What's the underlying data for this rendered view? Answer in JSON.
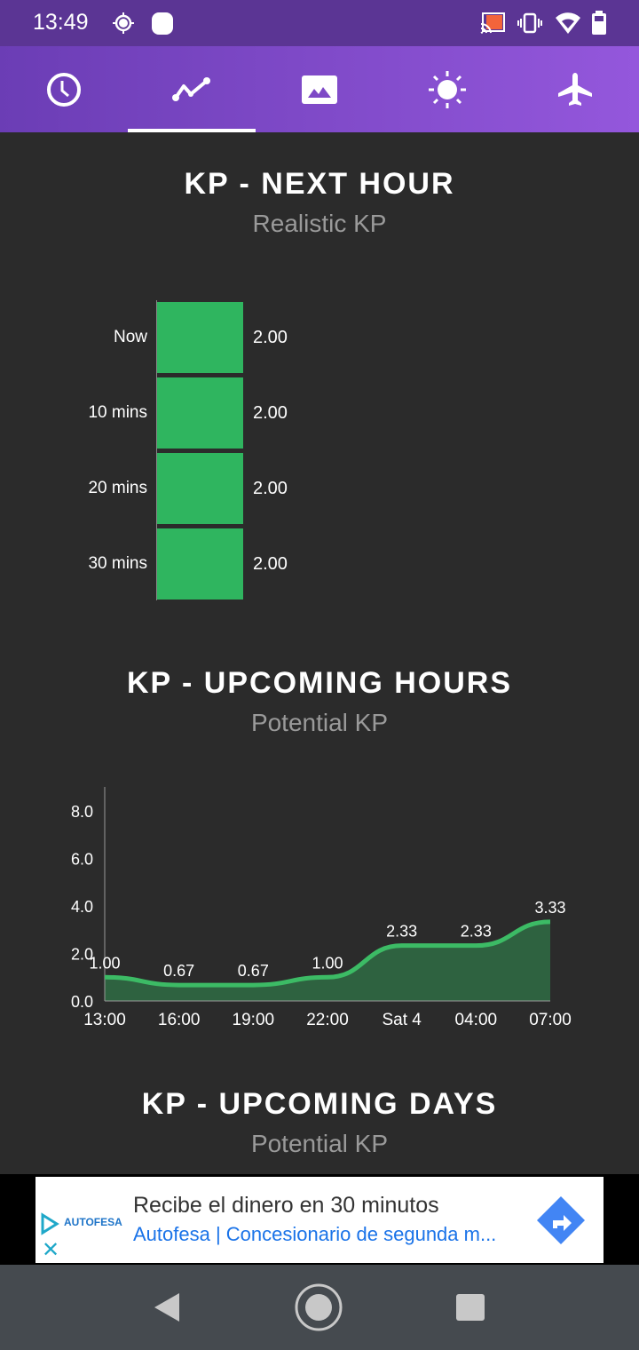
{
  "status_bar": {
    "time": "13:49"
  },
  "tabs": [
    {
      "icon": "clock-icon"
    },
    {
      "icon": "chart-line-icon",
      "active": true
    },
    {
      "icon": "image-icon"
    },
    {
      "icon": "sun-icon"
    },
    {
      "icon": "airplane-icon"
    }
  ],
  "next_hour": {
    "title": "KP - NEXT HOUR",
    "subtitle": "Realistic KP",
    "rows": [
      {
        "label": "Now",
        "value": "2.00"
      },
      {
        "label": "10 mins",
        "value": "2.00"
      },
      {
        "label": "20 mins",
        "value": "2.00"
      },
      {
        "label": "30 mins",
        "value": "2.00"
      }
    ],
    "bar_color": "#2fb55f"
  },
  "upcoming_hours": {
    "title": "KP - UPCOMING HOURS",
    "subtitle": "Potential KP"
  },
  "chart_data": {
    "type": "area",
    "categories": [
      "13:00",
      "16:00",
      "19:00",
      "22:00",
      "Sat 4",
      "04:00",
      "07:00"
    ],
    "values": [
      1.0,
      0.67,
      0.67,
      1.0,
      2.33,
      2.33,
      3.33
    ],
    "data_labels": [
      "1.00",
      "0.67",
      "0.67",
      "1.00",
      "2.33",
      "2.33",
      "3.33"
    ],
    "yticks": [
      "0.0",
      "2.0",
      "4.0",
      "6.0",
      "8.0"
    ],
    "ylim": [
      0,
      8
    ],
    "grid": false,
    "line_color": "#3cbb65",
    "fill_color": "#2e6240"
  },
  "upcoming_days": {
    "title": "KP - UPCOMING DAYS",
    "subtitle": "Potential KP"
  },
  "ad": {
    "brand": "AUTOFESA",
    "headline": "Recibe el dinero en 30 minutos",
    "link": "Autofesa | Concesionario de segunda m..."
  }
}
